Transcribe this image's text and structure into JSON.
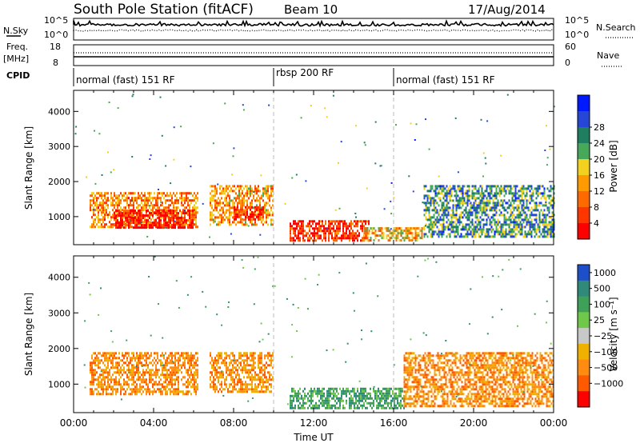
{
  "header": {
    "station": "South Pole Station (fitACF)",
    "beam": "Beam 10",
    "date": "17/Aug/2014"
  },
  "nsky": {
    "label": "N.Sky",
    "tick_top": "10^5",
    "tick_bottom": "10^0",
    "right_tick_top": "10^5",
    "right_tick_bottom": "10^0",
    "right_label": "N.Search"
  },
  "freq": {
    "label_line1": "Freq.",
    "label_line2": "[MHz]",
    "tick_top": "18",
    "tick_bottom": "8",
    "right_tick_top": "60",
    "right_tick_bottom": "0",
    "right_label": "Nave"
  },
  "cpid": {
    "label": "CPID",
    "segments": [
      {
        "label": "normal (fast) 151 RF",
        "start_hour": 0,
        "end_hour": 10
      },
      {
        "label": "rbsp 200 RF",
        "start_hour": 10,
        "end_hour": 16
      },
      {
        "label": "normal (fast) 151 RF",
        "start_hour": 16,
        "end_hour": 24
      }
    ]
  },
  "chart_data": [
    {
      "type": "heatmap",
      "name": "Power",
      "ylabel": "Slant Range [km]",
      "xlim": [
        0,
        24
      ],
      "ylim": [
        200,
        4600
      ],
      "yticks": [
        1000,
        2000,
        3000,
        4000
      ],
      "colorbar": {
        "label": "Power [dB]",
        "ticks": [
          "4",
          "8",
          "12",
          "16",
          "20",
          "24",
          "28"
        ],
        "colors": [
          "#0019ff",
          "#2646d8",
          "#1e7e5f",
          "#47a85a",
          "#f2d21e",
          "#ff9b00",
          "#ff6a00",
          "#ff3600",
          "#ff0000"
        ]
      },
      "regions": [
        {
          "t0": 0.8,
          "t1": 6.2,
          "r0": 700,
          "r1": 1700,
          "level": 0.7
        },
        {
          "t0": 2.0,
          "t1": 6.0,
          "r0": 700,
          "r1": 1200,
          "level": 1.0
        },
        {
          "t0": 6.8,
          "t1": 10.0,
          "r0": 800,
          "r1": 1900,
          "level": 0.65
        },
        {
          "t0": 8.0,
          "t1": 9.5,
          "r0": 900,
          "r1": 1300,
          "level": 0.95
        },
        {
          "t0": 10.8,
          "t1": 14.8,
          "r0": 300,
          "r1": 900,
          "level": 0.9
        },
        {
          "t0": 14.5,
          "t1": 17.5,
          "r0": 300,
          "r1": 700,
          "level": 0.6
        },
        {
          "t0": 17.5,
          "t1": 24.0,
          "r0": 400,
          "r1": 1900,
          "level": 0.3
        }
      ]
    },
    {
      "type": "heatmap",
      "name": "Velocity",
      "ylabel": "Slant Range [km]",
      "xlabel": "Time UT",
      "xlim": [
        0,
        24
      ],
      "ylim": [
        200,
        4600
      ],
      "xticks": [
        "00:00",
        "04:00",
        "08:00",
        "12:00",
        "16:00",
        "20:00",
        "00:00"
      ],
      "yticks": [
        1000,
        2000,
        3000,
        4000
      ],
      "colorbar": {
        "label": "Velocity [m s⁻¹]",
        "ticks": [
          "1000",
          "500",
          "100",
          "25",
          "−25",
          "−100",
          "−500",
          "−1000"
        ],
        "colors": [
          "#1f4fc8",
          "#2f8a7a",
          "#3fa05a",
          "#70c84a",
          "#c8c8c8",
          "#f0b000",
          "#ff8c10",
          "#ff5a00",
          "#ff0000"
        ]
      },
      "regions": [
        {
          "t0": 0.8,
          "t1": 6.2,
          "r0": 700,
          "r1": 1900,
          "v": -300
        },
        {
          "t0": 6.8,
          "t1": 10.0,
          "r0": 800,
          "r1": 1900,
          "v": -250
        },
        {
          "t0": 10.8,
          "t1": 16.5,
          "r0": 300,
          "r1": 900,
          "v": 200
        },
        {
          "t0": 16.5,
          "t1": 24.0,
          "r0": 400,
          "r1": 1900,
          "v": -150
        }
      ]
    }
  ]
}
